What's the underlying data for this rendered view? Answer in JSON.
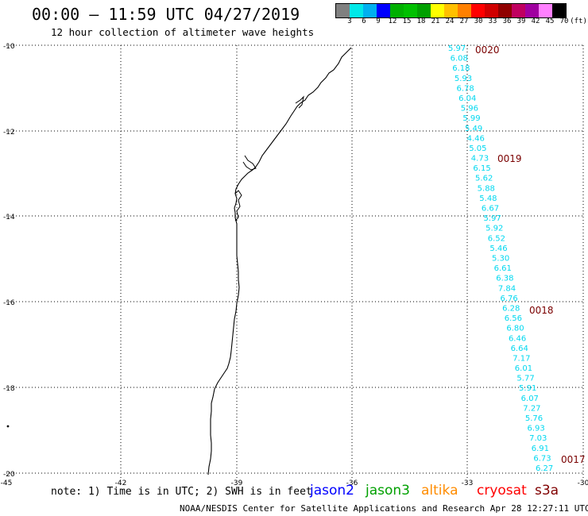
{
  "header": {
    "title": "00:00 – 11:59 UTC 04/27/2019",
    "subtitle": "12 hour collection of altimeter wave heights"
  },
  "legend": {
    "colors": [
      "#808080",
      "#00e8e8",
      "#00b0f0",
      "#0000ff",
      "#00b000",
      "#00c000",
      "#00a000",
      "#ffff00",
      "#ffc000",
      "#ff8000",
      "#ff0000",
      "#d00000",
      "#900000",
      "#c00060",
      "#a000a0",
      "#ff80ff",
      "#000000"
    ],
    "labels": [
      "3",
      "6",
      "9",
      "12",
      "15",
      "18",
      "21",
      "24",
      "27",
      "30",
      "33",
      "36",
      "39",
      "42",
      "45",
      "70",
      "(ft)"
    ]
  },
  "axes": {
    "y_labels": [
      "-10",
      "-12",
      "-14",
      "-16",
      "-18",
      "-20"
    ],
    "x_labels": [
      "-45",
      "-42",
      "-39",
      "-36",
      "-33",
      "-30"
    ]
  },
  "track": {
    "color": "#00d8f0",
    "values": [
      "5.97",
      "6.08",
      "6.18",
      "5.93",
      "6.78",
      "6.04",
      "5.96",
      "5.99",
      "5.49",
      "4.46",
      "5.05",
      "4.73",
      "6.15",
      "5.62",
      "5.88",
      "5.48",
      "6.67",
      "5.97",
      "5.92",
      "6.52",
      "5.46",
      "5.30",
      "6.61",
      "6.38",
      "7.84",
      "6.76",
      "6.28",
      "6.56",
      "6.80",
      "6.46",
      "6.64",
      "7.17",
      "6.01",
      "5.77",
      "5.91",
      "6.07",
      "7.27",
      "5.76",
      "6.93",
      "7.03",
      "6.91",
      "6.73",
      "6.27"
    ],
    "times": [
      {
        "label": "0020",
        "color": "#7a0000"
      },
      {
        "label": "0019",
        "color": "#7a0000"
      },
      {
        "label": "0018",
        "color": "#7a0000"
      },
      {
        "label": "0017",
        "color": "#7a0000"
      }
    ]
  },
  "footer": {
    "note": "note: 1) Time is in UTC; 2) SWH is in feet",
    "satellites": [
      {
        "name": "jason2",
        "color": "#0000ff"
      },
      {
        "name": "jason3",
        "color": "#00a000"
      },
      {
        "name": "altika",
        "color": "#ff8c00"
      },
      {
        "name": "cryosat",
        "color": "#ff0000"
      },
      {
        "name": "s3a",
        "color": "#800000"
      }
    ],
    "credit": "NOAA/NESDIS Center for Satellite Applications and Research   Apr 28 12:27:11 UTC 2019"
  }
}
